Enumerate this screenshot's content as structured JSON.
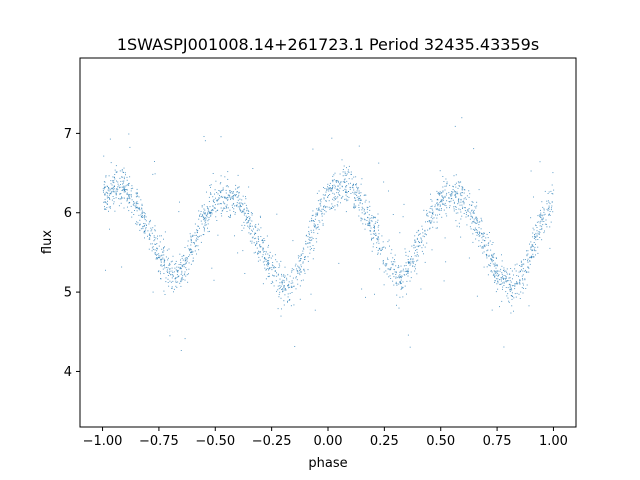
{
  "chart_data": {
    "type": "scatter",
    "title": "1SWASPJ001008.14+261723.1 Period 32435.43359s",
    "xlabel": "phase",
    "ylabel": "flux",
    "xlim": [
      -1.1,
      1.1
    ],
    "ylim": [
      3.3,
      7.95
    ],
    "xticks": [
      -1.0,
      -0.75,
      -0.5,
      -0.25,
      0.0,
      0.25,
      0.5,
      0.75,
      1.0
    ],
    "xtick_labels": [
      "−1.00",
      "−0.75",
      "−0.50",
      "−0.25",
      "0.00",
      "0.25",
      "0.50",
      "0.75",
      "1.00"
    ],
    "yticks": [
      4,
      5,
      6,
      7
    ],
    "ytick_labels": [
      "4",
      "5",
      "6",
      "7"
    ],
    "grid": false,
    "point_color": "#1f77b4",
    "series": [
      {
        "profile_x": [
          -1.0,
          -0.95,
          -0.9,
          -0.85,
          -0.8,
          -0.75,
          -0.7,
          -0.68,
          -0.65,
          -0.6,
          -0.55,
          -0.5,
          -0.45,
          -0.4,
          -0.35,
          -0.3,
          -0.25,
          -0.2,
          -0.18,
          -0.15,
          -0.1,
          -0.05,
          0.0,
          0.05,
          0.1,
          0.15,
          0.2,
          0.25,
          0.3,
          0.32,
          0.35,
          0.4,
          0.45,
          0.5,
          0.55,
          0.6,
          0.65,
          0.7,
          0.75,
          0.8,
          0.82,
          0.85,
          0.9,
          0.95,
          1.0
        ],
        "profile_y": [
          6.2,
          6.33,
          6.3,
          6.1,
          5.8,
          5.45,
          5.25,
          5.2,
          5.3,
          5.6,
          5.95,
          6.15,
          6.2,
          6.15,
          5.9,
          5.55,
          5.25,
          5.07,
          5.05,
          5.15,
          5.5,
          5.95,
          6.2,
          6.33,
          6.3,
          6.1,
          5.8,
          5.45,
          5.25,
          5.2,
          5.3,
          5.6,
          5.95,
          6.15,
          6.2,
          6.15,
          5.9,
          5.55,
          5.25,
          5.07,
          5.05,
          5.15,
          5.5,
          5.95,
          6.2
        ],
        "scatter_sigma": 0.12,
        "outlier_range": [
          3.5,
          7.6
        ]
      }
    ]
  }
}
